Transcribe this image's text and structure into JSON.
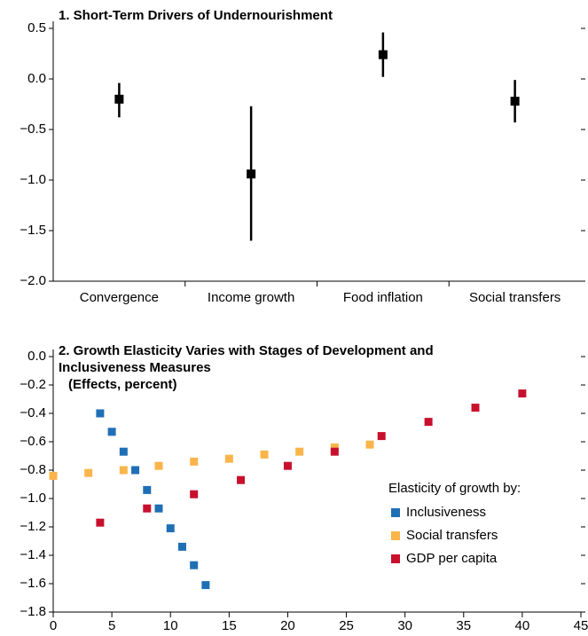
{
  "chart_data": [
    {
      "type": "errorbar",
      "title": "1. Short-Term Drivers of Undernourishment",
      "categories": [
        "Convergence",
        "Income growth",
        "Food inflation",
        "Social transfers"
      ],
      "values": [
        -0.2,
        -0.94,
        0.24,
        -0.22
      ],
      "lower": [
        -0.38,
        -1.6,
        0.02,
        -0.43
      ],
      "upper": [
        -0.04,
        -0.27,
        0.46,
        -0.01
      ],
      "color": "#000000",
      "ylim": [
        -2,
        0.5
      ],
      "yticks": [
        {
          "value": -2,
          "label": "−2.0"
        },
        {
          "value": -1.5,
          "label": "−1.5"
        },
        {
          "value": -1,
          "label": "−1.0"
        },
        {
          "value": -0.5,
          "label": "−0.5"
        },
        {
          "value": 0,
          "label": "0.0"
        },
        0.5
      ]
    },
    {
      "type": "scatter",
      "title": "2. Growth Elasticity Varies with Stages of Development and Inclusiveness Measures",
      "subtitle": "(Effects, percent)",
      "legend_title": "Elasticity of growth by:",
      "legend_position": "right",
      "series": [
        {
          "name": "Inclusiveness",
          "color": "#1f6fb5",
          "x": [
            4,
            5,
            6,
            7,
            8,
            9,
            10,
            11,
            12,
            13
          ],
          "values": [
            -0.4,
            -0.53,
            -0.67,
            -0.8,
            -0.94,
            -1.07,
            -1.21,
            -1.34,
            -1.47,
            -1.61
          ]
        },
        {
          "name": "Social transfers",
          "color": "#f9b54a",
          "x": [
            0,
            3,
            6,
            9,
            12,
            15,
            18,
            21,
            24,
            27
          ],
          "values": [
            -0.84,
            -0.82,
            -0.8,
            -0.77,
            -0.74,
            -0.72,
            -0.69,
            -0.67,
            -0.64,
            -0.62
          ]
        },
        {
          "name": "GDP per capita",
          "color": "#c8102e",
          "x": [
            4,
            8,
            12,
            16,
            20,
            24,
            28,
            32,
            36,
            40
          ],
          "values": [
            -1.17,
            -1.07,
            -0.97,
            -0.87,
            -0.77,
            -0.67,
            -0.56,
            -0.46,
            -0.36,
            -0.26
          ]
        }
      ],
      "xlim": [
        0,
        45
      ],
      "xticks": [
        0,
        5,
        10,
        15,
        20,
        25,
        30,
        35,
        40,
        45
      ],
      "ylim": [
        -1.8,
        0
      ],
      "yticks": [
        {
          "value": -1.8,
          "label": "−1.8"
        },
        {
          "value": -1.6,
          "label": "−1.6"
        },
        {
          "value": -1.4,
          "label": "−1.4"
        },
        {
          "value": -1.2,
          "label": "−1.2"
        },
        {
          "value": -1,
          "label": "−1.0"
        },
        {
          "value": -0.8,
          "label": "−0.8"
        },
        {
          "value": -0.6,
          "label": "−0.6"
        },
        {
          "value": -0.4,
          "label": "−0.4"
        },
        {
          "value": -0.2,
          "label": "−0.2"
        },
        {
          "value": 0,
          "label": "0.0"
        }
      ]
    }
  ]
}
